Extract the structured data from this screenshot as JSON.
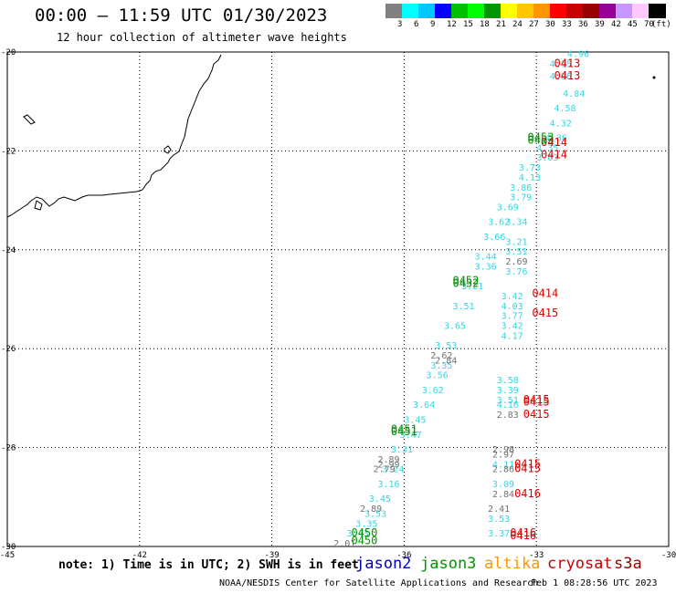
{
  "header": {
    "title": "00:00 – 11:59 UTC 01/30/2023",
    "subtitle": "12 hour collection of altimeter wave heights"
  },
  "colorbar": {
    "labels": [
      "3",
      "6",
      "9",
      "12",
      "15",
      "18",
      "21",
      "24",
      "27",
      "30",
      "33",
      "36",
      "39",
      "42",
      "45",
      "70"
    ],
    "unit": "(ft)",
    "colors": [
      "#808080",
      "#00ffff",
      "#00c8ff",
      "#0000ff",
      "#00c000",
      "#00ff00",
      "#009600",
      "#ffff00",
      "#ffc800",
      "#ff9600",
      "#ff0000",
      "#c80000",
      "#960000",
      "#960096",
      "#c896ff",
      "#ffc8ff",
      "#000000"
    ]
  },
  "map": {
    "lat_labels": [
      "-20",
      "-22",
      "-24",
      "-26",
      "-28",
      "-30"
    ],
    "lon_labels": [
      "-45",
      "-42",
      "-39",
      "-36",
      "-33",
      "-30"
    ],
    "lat_range": [
      -30,
      -20
    ],
    "lon_range": [
      -45,
      -30
    ],
    "land_color": "#ffffff",
    "coast_color": "#000000",
    "grid": "dotted"
  },
  "observations": {
    "cyan": [
      {
        "lon": -32.3,
        "lat": -20.1,
        "v": "4.96"
      },
      {
        "lon": -32.7,
        "lat": -20.3,
        "v": "4.15"
      },
      {
        "lon": -32.7,
        "lat": -20.55,
        "v": "4.86"
      },
      {
        "lon": -32.4,
        "lat": -20.9,
        "v": "4.84"
      },
      {
        "lon": -32.6,
        "lat": -21.2,
        "v": "4.58"
      },
      {
        "lon": -32.7,
        "lat": -21.5,
        "v": "4.32"
      },
      {
        "lon": -32.8,
        "lat": -21.8,
        "v": "4.36"
      },
      {
        "lon": -33.0,
        "lat": -22.0,
        "v": "4.35"
      },
      {
        "lon": -33.0,
        "lat": -22.2,
        "v": "3.63"
      },
      {
        "lon": -33.4,
        "lat": -22.4,
        "v": "3.73"
      },
      {
        "lon": -33.4,
        "lat": -22.6,
        "v": "4.13"
      },
      {
        "lon": -33.6,
        "lat": -22.8,
        "v": "3.86"
      },
      {
        "lon": -33.6,
        "lat": -23.0,
        "v": "3.79"
      },
      {
        "lon": -33.9,
        "lat": -23.2,
        "v": "3.69"
      },
      {
        "lon": -33.7,
        "lat": -23.5,
        "v": "3.34"
      },
      {
        "lon": -34.1,
        "lat": -23.5,
        "v": "3.62"
      },
      {
        "lon": -34.2,
        "lat": -23.8,
        "v": "3.66"
      },
      {
        "lon": -33.7,
        "lat": -23.9,
        "v": "3.21"
      },
      {
        "lon": -33.7,
        "lat": -24.1,
        "v": "3.51"
      },
      {
        "lon": -34.4,
        "lat": -24.2,
        "v": "3.44"
      },
      {
        "lon": -34.4,
        "lat": -24.4,
        "v": "3.36"
      },
      {
        "lon": -33.7,
        "lat": -24.5,
        "v": "3.76"
      },
      {
        "lon": -34.7,
        "lat": -24.8,
        "v": "3.21"
      },
      {
        "lon": -33.8,
        "lat": -25.0,
        "v": "3.42"
      },
      {
        "lon": -34.9,
        "lat": -25.2,
        "v": "3.51"
      },
      {
        "lon": -33.8,
        "lat": -25.2,
        "v": "4.03"
      },
      {
        "lon": -33.8,
        "lat": -25.4,
        "v": "3.77"
      },
      {
        "lon": -35.1,
        "lat": -25.6,
        "v": "3.65"
      },
      {
        "lon": -33.8,
        "lat": -25.6,
        "v": "3.42"
      },
      {
        "lon": -33.8,
        "lat": -25.8,
        "v": "4.17"
      },
      {
        "lon": -35.3,
        "lat": -26.0,
        "v": "3.53"
      },
      {
        "lon": -35.4,
        "lat": -26.4,
        "v": "3.35"
      },
      {
        "lon": -35.5,
        "lat": -26.6,
        "v": "3.56"
      },
      {
        "lon": -33.9,
        "lat": -26.7,
        "v": "3.58"
      },
      {
        "lon": -33.9,
        "lat": -26.9,
        "v": "3.39"
      },
      {
        "lon": -35.6,
        "lat": -26.9,
        "v": "3.62"
      },
      {
        "lon": -33.9,
        "lat": -27.1,
        "v": "3.51"
      },
      {
        "lon": -35.8,
        "lat": -27.2,
        "v": "3.64"
      },
      {
        "lon": -33.9,
        "lat": -27.2,
        "v": "4.16"
      },
      {
        "lon": -36.0,
        "lat": -27.5,
        "v": "3.45"
      },
      {
        "lon": -36.1,
        "lat": -27.8,
        "v": "3.47"
      },
      {
        "lon": -36.3,
        "lat": -28.1,
        "v": "3.31"
      },
      {
        "lon": -34.0,
        "lat": -28.4,
        "v": "4.11"
      },
      {
        "lon": -36.5,
        "lat": -28.5,
        "v": "3.24"
      },
      {
        "lon": -36.6,
        "lat": -28.8,
        "v": "3.16"
      },
      {
        "lon": -34.0,
        "lat": -28.8,
        "v": "3.09"
      },
      {
        "lon": -36.8,
        "lat": -29.1,
        "v": "3.45"
      },
      {
        "lon": -36.9,
        "lat": -29.4,
        "v": "3.53"
      },
      {
        "lon": -34.1,
        "lat": -29.5,
        "v": "3.53"
      },
      {
        "lon": -37.1,
        "lat": -29.6,
        "v": "3.35"
      },
      {
        "lon": -37.3,
        "lat": -29.8,
        "v": "3.43"
      },
      {
        "lon": -34.1,
        "lat": -29.8,
        "v": "3.37"
      }
    ],
    "gray": [
      {
        "lon": -33.7,
        "lat": -24.3,
        "v": "2.69"
      },
      {
        "lon": -35.4,
        "lat": -26.2,
        "v": "2.62"
      },
      {
        "lon": -35.3,
        "lat": -26.3,
        "v": "2.84"
      },
      {
        "lon": -33.9,
        "lat": -27.4,
        "v": "2.83"
      },
      {
        "lon": -34.0,
        "lat": -28.1,
        "v": "2.98"
      },
      {
        "lon": -34.0,
        "lat": -28.2,
        "v": "2.97"
      },
      {
        "lon": -36.6,
        "lat": -28.3,
        "v": "2.89"
      },
      {
        "lon": -36.6,
        "lat": -28.4,
        "v": "2.99"
      },
      {
        "lon": -36.7,
        "lat": -28.5,
        "v": "2.79"
      },
      {
        "lon": -34.0,
        "lat": -28.5,
        "v": "2.86"
      },
      {
        "lon": -34.0,
        "lat": -29.0,
        "v": "2.84"
      },
      {
        "lon": -37.0,
        "lat": -29.3,
        "v": "2.89"
      },
      {
        "lon": -34.1,
        "lat": -29.3,
        "v": "2.41"
      },
      {
        "lon": -37.6,
        "lat": -30.0,
        "v": "2.01"
      }
    ],
    "green": [
      {
        "lon": -33.2,
        "lat": -21.8,
        "v": "0453"
      },
      {
        "lon": -33.2,
        "lat": -21.85,
        "v": "0453"
      },
      {
        "lon": -34.9,
        "lat": -24.7,
        "v": "0452"
      },
      {
        "lon": -34.9,
        "lat": -24.75,
        "v": "0452"
      },
      {
        "lon": -36.3,
        "lat": -27.7,
        "v": "0451"
      },
      {
        "lon": -36.3,
        "lat": -27.75,
        "v": "0451"
      },
      {
        "lon": -37.2,
        "lat": -29.8,
        "v": "0450"
      },
      {
        "lon": -37.2,
        "lat": -29.95,
        "v": "0450"
      }
    ],
    "red": [
      {
        "lon": -32.6,
        "lat": -20.3,
        "v": "0413"
      },
      {
        "lon": -32.6,
        "lat": -20.55,
        "v": "0413"
      },
      {
        "lon": -32.9,
        "lat": -21.9,
        "v": "0414"
      },
      {
        "lon": -32.9,
        "lat": -22.15,
        "v": "0414"
      },
      {
        "lon": -33.1,
        "lat": -24.95,
        "v": "0414"
      },
      {
        "lon": -33.1,
        "lat": -25.35,
        "v": "0415"
      },
      {
        "lon": -33.3,
        "lat": -27.1,
        "v": "0415"
      },
      {
        "lon": -33.3,
        "lat": -27.15,
        "v": "0415"
      },
      {
        "lon": -33.3,
        "lat": -27.4,
        "v": "0415"
      },
      {
        "lon": -33.5,
        "lat": -28.4,
        "v": "0415"
      },
      {
        "lon": -33.5,
        "lat": -28.5,
        "v": "0415"
      },
      {
        "lon": -33.5,
        "lat": -29.0,
        "v": "0416"
      },
      {
        "lon": -33.6,
        "lat": -29.8,
        "v": "0416"
      },
      {
        "lon": -33.6,
        "lat": -29.85,
        "v": "0416"
      }
    ]
  },
  "footer": {
    "note": "note: 1) Time is in UTC; 2) SWH is in feet",
    "satellites": [
      {
        "name": "jason2",
        "color": "#0000cc"
      },
      {
        "name": "jason3",
        "color": "#009600"
      },
      {
        "name": "altika",
        "color": "#ff9600"
      },
      {
        "name": "cryosat",
        "color": "#cc0000"
      },
      {
        "name": "s3a",
        "color": "#990000"
      }
    ],
    "credit": "NOAA/NESDIS Center for Satellite Applications and Research",
    "timestamp": "Feb  1 08:28:56 UTC 2023"
  }
}
